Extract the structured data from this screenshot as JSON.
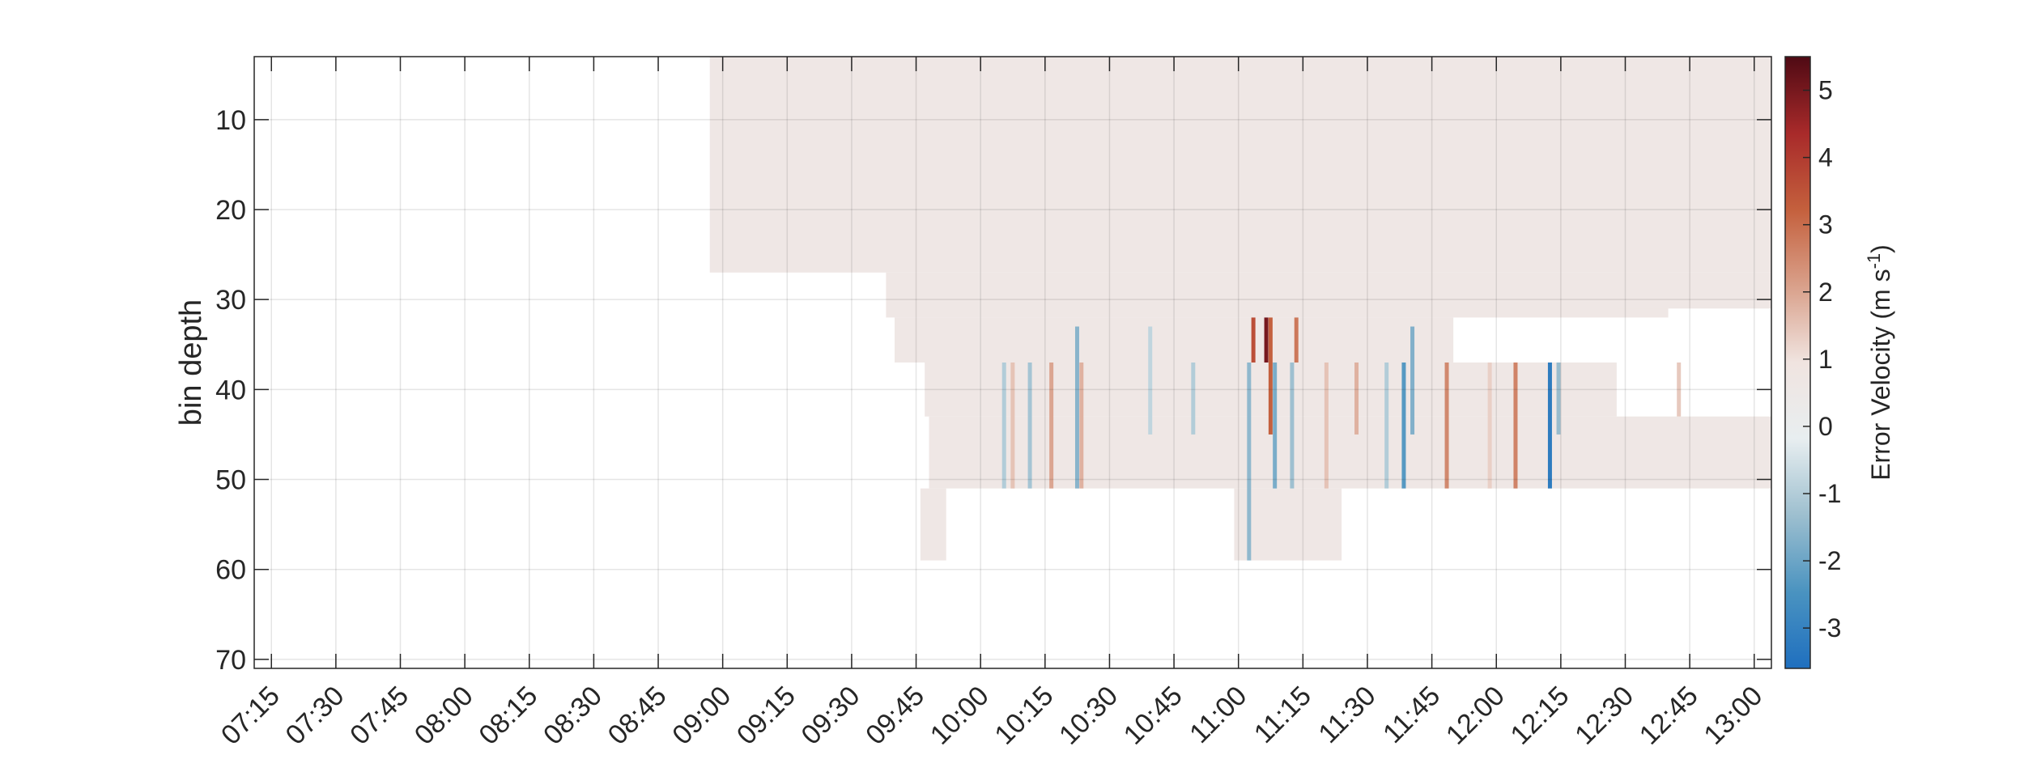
{
  "chart_data": {
    "type": "heatmap",
    "ylabel": "bin depth",
    "colorbar_label": "Error Velocity (m s",
    "colorbar_label_sup": "-1",
    "colorbar_label_end": ")",
    "x_ticks": [
      "07:15",
      "07:30",
      "07:45",
      "08:00",
      "08:15",
      "08:30",
      "08:45",
      "09:00",
      "09:15",
      "09:30",
      "09:45",
      "10:00",
      "10:15",
      "10:30",
      "10:45",
      "11:00",
      "11:15",
      "11:30",
      "11:45",
      "12:00",
      "12:15",
      "12:30",
      "12:45",
      "13:00"
    ],
    "x_start": "07:15",
    "x_end": "13:00",
    "x_range": [
      "07:11",
      "13:04"
    ],
    "y_ticks": [
      10,
      20,
      30,
      40,
      50,
      60,
      70
    ],
    "y_range": [
      3,
      71
    ],
    "y_reversed": true,
    "color_ticks": [
      5,
      4,
      3,
      2,
      1,
      0,
      -1,
      -2,
      -3
    ],
    "color_range": [
      -3.6,
      5.5
    ],
    "colormap": [
      "#1f6fbf",
      "#4a93c0",
      "#9dbfcf",
      "#e8eef0",
      "#f0e4e0",
      "#d9a08a",
      "#c4603d",
      "#a82a2a",
      "#4f0a14"
    ],
    "base_color": "#efe7e5",
    "grid": true,
    "regions": [
      {
        "t0": "08:57",
        "t1": "13:04",
        "d0": 3,
        "d1": 27,
        "v": 0.05
      },
      {
        "t0": "09:38",
        "t1": "12:40",
        "d0": 27,
        "d1": 32,
        "v": 0.0
      },
      {
        "t0": "12:28",
        "t1": "13:04",
        "d0": 27,
        "d1": 31,
        "v": 0.0
      },
      {
        "t0": "09:40",
        "t1": "11:50",
        "d0": 32,
        "d1": 37,
        "v": 0.05
      },
      {
        "t0": "09:47",
        "t1": "12:28",
        "d0": 37,
        "d1": 43,
        "v": 0.1
      },
      {
        "t0": "09:48",
        "t1": "13:04",
        "d0": 43,
        "d1": 51,
        "v": 0.1
      },
      {
        "t0": "09:46",
        "t1": "09:52",
        "d0": 51,
        "d1": 59,
        "v": 0.1
      },
      {
        "t0": "10:59",
        "t1": "11:24",
        "d0": 51,
        "d1": 59,
        "v": 0.1
      }
    ],
    "stripes": [
      {
        "t": "10:05",
        "d0": 37,
        "d1": 51,
        "v": -1.0
      },
      {
        "t": "10:07",
        "d0": 37,
        "d1": 51,
        "v": 1.5
      },
      {
        "t": "10:11",
        "d0": 37,
        "d1": 51,
        "v": -1.2
      },
      {
        "t": "10:16",
        "d0": 37,
        "d1": 51,
        "v": 2.0
      },
      {
        "t": "10:22",
        "d0": 33,
        "d1": 51,
        "v": -1.6
      },
      {
        "t": "10:23",
        "d0": 37,
        "d1": 51,
        "v": 1.8
      },
      {
        "t": "10:39",
        "d0": 33,
        "d1": 45,
        "v": -0.8
      },
      {
        "t": "10:49",
        "d0": 37,
        "d1": 45,
        "v": -1.0
      },
      {
        "t": "11:02",
        "d0": 37,
        "d1": 59,
        "v": -1.5
      },
      {
        "t": "11:03",
        "d0": 32,
        "d1": 37,
        "v": 3.6
      },
      {
        "t": "11:06",
        "d0": 32,
        "d1": 37,
        "v": 5.0
      },
      {
        "t": "11:07",
        "d0": 32,
        "d1": 45,
        "v": 3.2
      },
      {
        "t": "11:08",
        "d0": 37,
        "d1": 51,
        "v": -1.8
      },
      {
        "t": "11:12",
        "d0": 37,
        "d1": 51,
        "v": -1.3
      },
      {
        "t": "11:13",
        "d0": 32,
        "d1": 37,
        "v": 2.8
      },
      {
        "t": "11:20",
        "d0": 37,
        "d1": 51,
        "v": 1.5
      },
      {
        "t": "11:27",
        "d0": 37,
        "d1": 45,
        "v": 1.8
      },
      {
        "t": "11:34",
        "d0": 37,
        "d1": 51,
        "v": -1.0
      },
      {
        "t": "11:38",
        "d0": 37,
        "d1": 51,
        "v": -2.3
      },
      {
        "t": "11:40",
        "d0": 33,
        "d1": 45,
        "v": -1.7
      },
      {
        "t": "11:48",
        "d0": 37,
        "d1": 51,
        "v": 2.5
      },
      {
        "t": "11:58",
        "d0": 37,
        "d1": 51,
        "v": 1.3
      },
      {
        "t": "12:04",
        "d0": 37,
        "d1": 51,
        "v": 2.6
      },
      {
        "t": "12:12",
        "d0": 37,
        "d1": 51,
        "v": -3.2
      },
      {
        "t": "12:14",
        "d0": 37,
        "d1": 45,
        "v": -1.4
      },
      {
        "t": "12:42",
        "d0": 37,
        "d1": 43,
        "v": 1.4
      }
    ]
  }
}
